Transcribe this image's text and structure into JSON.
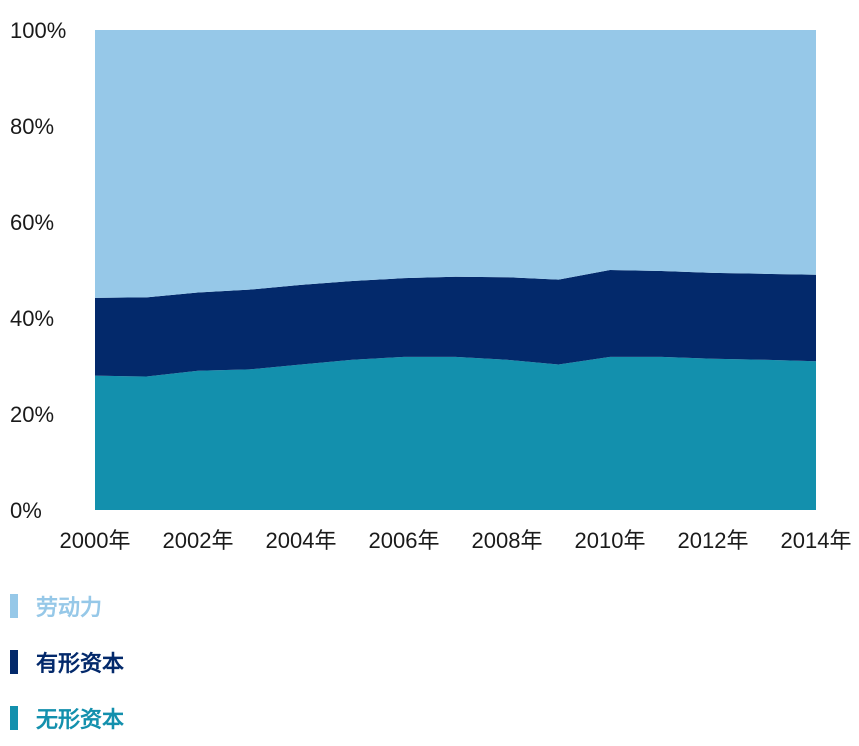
{
  "chart_data": {
    "type": "area",
    "stacked": true,
    "percent": true,
    "x": [
      2000,
      2001,
      2002,
      2003,
      2004,
      2005,
      2006,
      2007,
      2008,
      2009,
      2010,
      2011,
      2012,
      2013,
      2014
    ],
    "xticks": [
      "2000年",
      "2002年",
      "2004年",
      "2006年",
      "2008年",
      "2010年",
      "2012年",
      "2014年"
    ],
    "ylim": [
      0,
      100
    ],
    "yticks": [
      "0%",
      "20%",
      "40%",
      "60%",
      "80%",
      "100%"
    ],
    "series": [
      {
        "name": "无形资本",
        "color": "#1390ad",
        "values": [
          28,
          27.8,
          29,
          29.3,
          30.3,
          31.3,
          31.9,
          31.9,
          31.3,
          30.3,
          31.9,
          31.9,
          31.5,
          31.3,
          31
        ]
      },
      {
        "name": "有形资本",
        "color": "#03296b",
        "values": [
          16.2,
          16.5,
          16.3,
          16.6,
          16.6,
          16.4,
          16.4,
          16.7,
          17.2,
          17.7,
          18.1,
          17.9,
          17.9,
          17.9,
          18
        ]
      },
      {
        "name": "劳动力",
        "color": "#96c8e8",
        "values": [
          55.8,
          55.7,
          54.7,
          54.1,
          53.1,
          52.3,
          51.7,
          51.4,
          51.5,
          52,
          50,
          50.2,
          50.6,
          50.8,
          51
        ]
      }
    ],
    "legend_position": "bottom-left",
    "grid": false
  }
}
